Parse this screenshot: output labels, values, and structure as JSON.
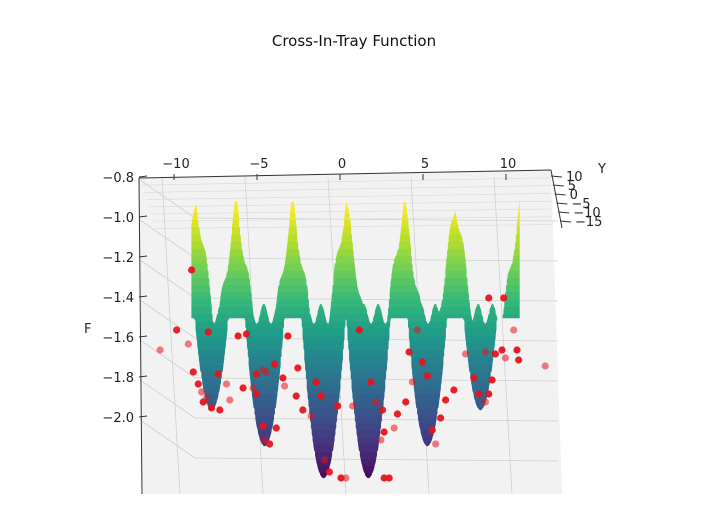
{
  "chart_data": {
    "type": "surface3d",
    "title": "Cross-In-Tray Function",
    "xlabel": "",
    "ylabel": "Y",
    "zlabel": "F",
    "x_ticks": [
      -10,
      -5,
      0,
      5,
      10
    ],
    "y_ticks": [
      10,
      5,
      0,
      -5,
      -10,
      -15
    ],
    "z_ticks": [
      -0.8,
      -1.0,
      -1.2,
      -1.4,
      -1.6,
      -1.8,
      -2.0
    ],
    "x_tick_labels": [
      "−10",
      "−5",
      "0",
      "5",
      "10"
    ],
    "y_tick_labels": [
      "10",
      "5",
      "0",
      "−5",
      "−10",
      "−15"
    ],
    "z_tick_labels": [
      "−0.8",
      "−1.0",
      "−1.2",
      "−1.4",
      "−1.6",
      "−1.8",
      "−2.0"
    ],
    "xlim": [
      -10,
      10
    ],
    "zlim": [
      -2.15,
      -0.7
    ],
    "surface_colormap": "viridis",
    "grid": true,
    "minima_x": [
      -8.1,
      -4.9,
      -1.35,
      1.35,
      4.9,
      8.1
    ],
    "scatter": {
      "color": "#e8131b",
      "points": [
        [
          -11.2,
          -1.46
        ],
        [
          -10.2,
          -1.36
        ],
        [
          -9.3,
          -1.06
        ],
        [
          -9.5,
          -1.43
        ],
        [
          -9.2,
          -1.57
        ],
        [
          -8.9,
          -1.63
        ],
        [
          -8.7,
          -1.67
        ],
        [
          -8.6,
          -1.72
        ],
        [
          -8.1,
          -1.75
        ],
        [
          -8.4,
          -1.7
        ],
        [
          -7.7,
          -1.58
        ],
        [
          -7.6,
          -1.76
        ],
        [
          -7.2,
          -1.63
        ],
        [
          -8.3,
          -1.37
        ],
        [
          -6.2,
          -1.65
        ],
        [
          -5.6,
          -1.65
        ],
        [
          -5.4,
          -1.68
        ],
        [
          -5.0,
          -1.84
        ],
        [
          -4.9,
          -1.91
        ],
        [
          -4.6,
          -1.93
        ],
        [
          -4.2,
          -1.85
        ],
        [
          -4.8,
          -1.57
        ],
        [
          -5.4,
          -1.58
        ],
        [
          -4.3,
          -1.53
        ],
        [
          -3.7,
          -1.64
        ],
        [
          -3.0,
          -1.69
        ],
        [
          -3.5,
          -1.39
        ],
        [
          -5.0,
          -1.56
        ],
        [
          -6.5,
          -1.39
        ],
        [
          -2.6,
          -1.76
        ],
        [
          -2.1,
          -1.79
        ],
        [
          -2.9,
          -1.55
        ],
        [
          -1.5,
          -1.69
        ],
        [
          -1.3,
          -2.01
        ],
        [
          -1.0,
          -2.07
        ],
        [
          -0.3,
          -2.1
        ],
        [
          0.0,
          -2.1
        ],
        [
          -0.5,
          -1.74
        ],
        [
          -1.8,
          -1.62
        ],
        [
          0.4,
          -1.74
        ],
        [
          0.8,
          -1.36
        ],
        [
          1.5,
          -1.62
        ],
        [
          1.8,
          -1.72
        ],
        [
          2.2,
          -1.76
        ],
        [
          2.3,
          -1.87
        ],
        [
          2.1,
          -1.91
        ],
        [
          2.6,
          -2.1
        ],
        [
          2.3,
          -2.1
        ],
        [
          2.9,
          -1.85
        ],
        [
          3.1,
          -1.78
        ],
        [
          3.6,
          -1.72
        ],
        [
          4.0,
          -1.62
        ],
        [
          3.8,
          -1.47
        ],
        [
          4.6,
          -1.52
        ],
        [
          4.3,
          -1.36
        ],
        [
          4.9,
          -1.59
        ],
        [
          5.2,
          -1.86
        ],
        [
          5.4,
          -1.93
        ],
        [
          5.7,
          -1.8
        ],
        [
          6.0,
          -1.71
        ],
        [
          7.2,
          -1.48
        ],
        [
          7.7,
          -1.6
        ],
        [
          8.0,
          -1.68
        ],
        [
          8.4,
          -1.72
        ],
        [
          8.6,
          -1.68
        ],
        [
          8.8,
          -1.61
        ],
        [
          8.4,
          -1.47
        ],
        [
          9.0,
          -1.48
        ],
        [
          9.4,
          -1.46
        ],
        [
          9.6,
          -1.5
        ],
        [
          8.6,
          -1.2
        ],
        [
          9.5,
          -1.2
        ],
        [
          10.1,
          -1.36
        ],
        [
          10.4,
          -1.51
        ],
        [
          10.3,
          -1.46
        ],
        [
          12.0,
          -1.54
        ],
        [
          -6.0,
          -1.38
        ],
        [
          -3.8,
          -1.6
        ],
        [
          -7.0,
          -1.71
        ],
        [
          6.5,
          -1.66
        ]
      ]
    }
  }
}
